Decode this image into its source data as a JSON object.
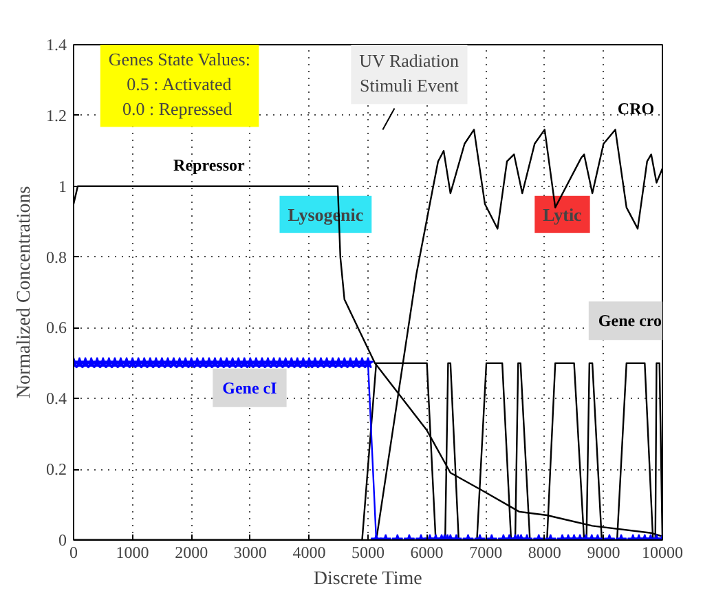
{
  "chart_data": {
    "type": "line",
    "xlabel": "Discrete Time",
    "ylabel": "Normalized Concentrations",
    "xlim": [
      0,
      10000
    ],
    "ylim": [
      0,
      1.4
    ],
    "xticks": [
      0,
      1000,
      2000,
      3000,
      4000,
      5000,
      6000,
      7000,
      8000,
      9000,
      10000
    ],
    "yticks": [
      0,
      0.2,
      0.4,
      0.6,
      0.8,
      1,
      1.2,
      1.4
    ],
    "grid": true,
    "legend": false,
    "line_style": "solid",
    "series": [
      {
        "name": "Repressor",
        "color": "#000000",
        "marker": "none",
        "x": [
          0,
          70,
          4486,
          4530,
          4600,
          5117,
          6000,
          6400,
          6940,
          7570,
          8040,
          8810,
          9810,
          10000
        ],
        "values": [
          0.95,
          1.0,
          1.0,
          0.8,
          0.68,
          0.5,
          0.31,
          0.19,
          0.14,
          0.08,
          0.07,
          0.04,
          0.02,
          0.01
        ]
      },
      {
        "name": "CRO",
        "color": "#000000",
        "marker": "none",
        "x": [
          0,
          5140,
          5820,
          6050,
          6190,
          6285,
          6400,
          6640,
          6800,
          6985,
          7200,
          7360,
          7480,
          7620,
          7830,
          8000,
          8180,
          8620,
          8670,
          8810,
          9000,
          9200,
          9390,
          9580,
          9740,
          9810,
          9900,
          10000
        ],
        "values": [
          0,
          0,
          0.75,
          0.95,
          1.07,
          1.1,
          0.98,
          1.12,
          1.16,
          0.95,
          0.88,
          1.07,
          1.09,
          0.98,
          1.12,
          1.16,
          0.94,
          1.08,
          1.09,
          0.98,
          1.12,
          1.16,
          0.94,
          0.88,
          1.07,
          1.09,
          1.01,
          1.05
        ]
      },
      {
        "name": "Gene cro",
        "color": "#000000",
        "marker": "none",
        "x": [
          0,
          4900,
          5140,
          6000,
          6150,
          6310,
          6360,
          6400,
          6540,
          6850,
          7010,
          7280,
          7430,
          7500,
          7550,
          7590,
          7750,
          8040,
          8180,
          8500,
          8670,
          8710,
          8760,
          8810,
          8970,
          9230,
          9390,
          9700,
          9840,
          9880,
          9900,
          9950,
          10000
        ],
        "values": [
          0,
          0,
          0.5,
          0.5,
          0,
          0,
          0.5,
          0.5,
          0,
          0,
          0.5,
          0.5,
          0,
          0,
          0.5,
          0.5,
          0,
          0,
          0.5,
          0.5,
          0,
          0,
          0.5,
          0.5,
          0,
          0,
          0.5,
          0.5,
          0,
          0,
          0.5,
          0.5,
          0
        ]
      },
      {
        "name": "Gene cI",
        "color": "#0000ff",
        "marker": "star",
        "x": [
          0,
          100,
          200,
          300,
          400,
          500,
          600,
          700,
          800,
          900,
          1000,
          1100,
          1200,
          1300,
          1400,
          1500,
          1600,
          1700,
          1800,
          1900,
          2000,
          2100,
          2200,
          2300,
          2400,
          2500,
          2600,
          2700,
          2800,
          2900,
          3000,
          3100,
          3200,
          3300,
          3400,
          3500,
          3600,
          3700,
          3800,
          3900,
          4000,
          4100,
          4200,
          4300,
          4400,
          4500,
          4600,
          4700,
          4800,
          4900,
          5000,
          5140,
          5300,
          5500,
          5700,
          5900,
          6050,
          6150,
          6250,
          6300,
          6350,
          6400,
          6500,
          6700,
          6900,
          7100,
          7300,
          7400,
          7500,
          7550,
          7600,
          7700,
          7900,
          8100,
          8300,
          8400,
          8500,
          8600,
          8700,
          8800,
          8900,
          9100,
          9300,
          9500,
          9600,
          9700,
          9800,
          9900,
          10000
        ],
        "values": [
          0.5,
          0.5,
          0.5,
          0.5,
          0.5,
          0.5,
          0.5,
          0.5,
          0.5,
          0.5,
          0.5,
          0.5,
          0.5,
          0.5,
          0.5,
          0.5,
          0.5,
          0.5,
          0.5,
          0.5,
          0.5,
          0.5,
          0.5,
          0.5,
          0.5,
          0.5,
          0.5,
          0.5,
          0.5,
          0.5,
          0.5,
          0.5,
          0.5,
          0.5,
          0.5,
          0.5,
          0.5,
          0.5,
          0.5,
          0.5,
          0.5,
          0.5,
          0.5,
          0.5,
          0.5,
          0.5,
          0.5,
          0.5,
          0.5,
          0.5,
          0.5,
          0,
          0,
          0,
          0,
          0,
          0,
          0,
          0,
          0,
          0,
          0,
          0,
          0,
          0,
          0,
          0,
          0,
          0,
          0,
          0,
          0,
          0,
          0,
          0,
          0,
          0,
          0,
          0,
          0,
          0,
          0,
          0,
          0,
          0,
          0,
          0,
          0,
          0
        ]
      }
    ],
    "annotations": [
      "Genes State Values:\n0.5 : Activated\n 0.0 : Repressed",
      "UV Radiation\nStimuli Event",
      "Lysogenic",
      "Lytic"
    ]
  }
}
